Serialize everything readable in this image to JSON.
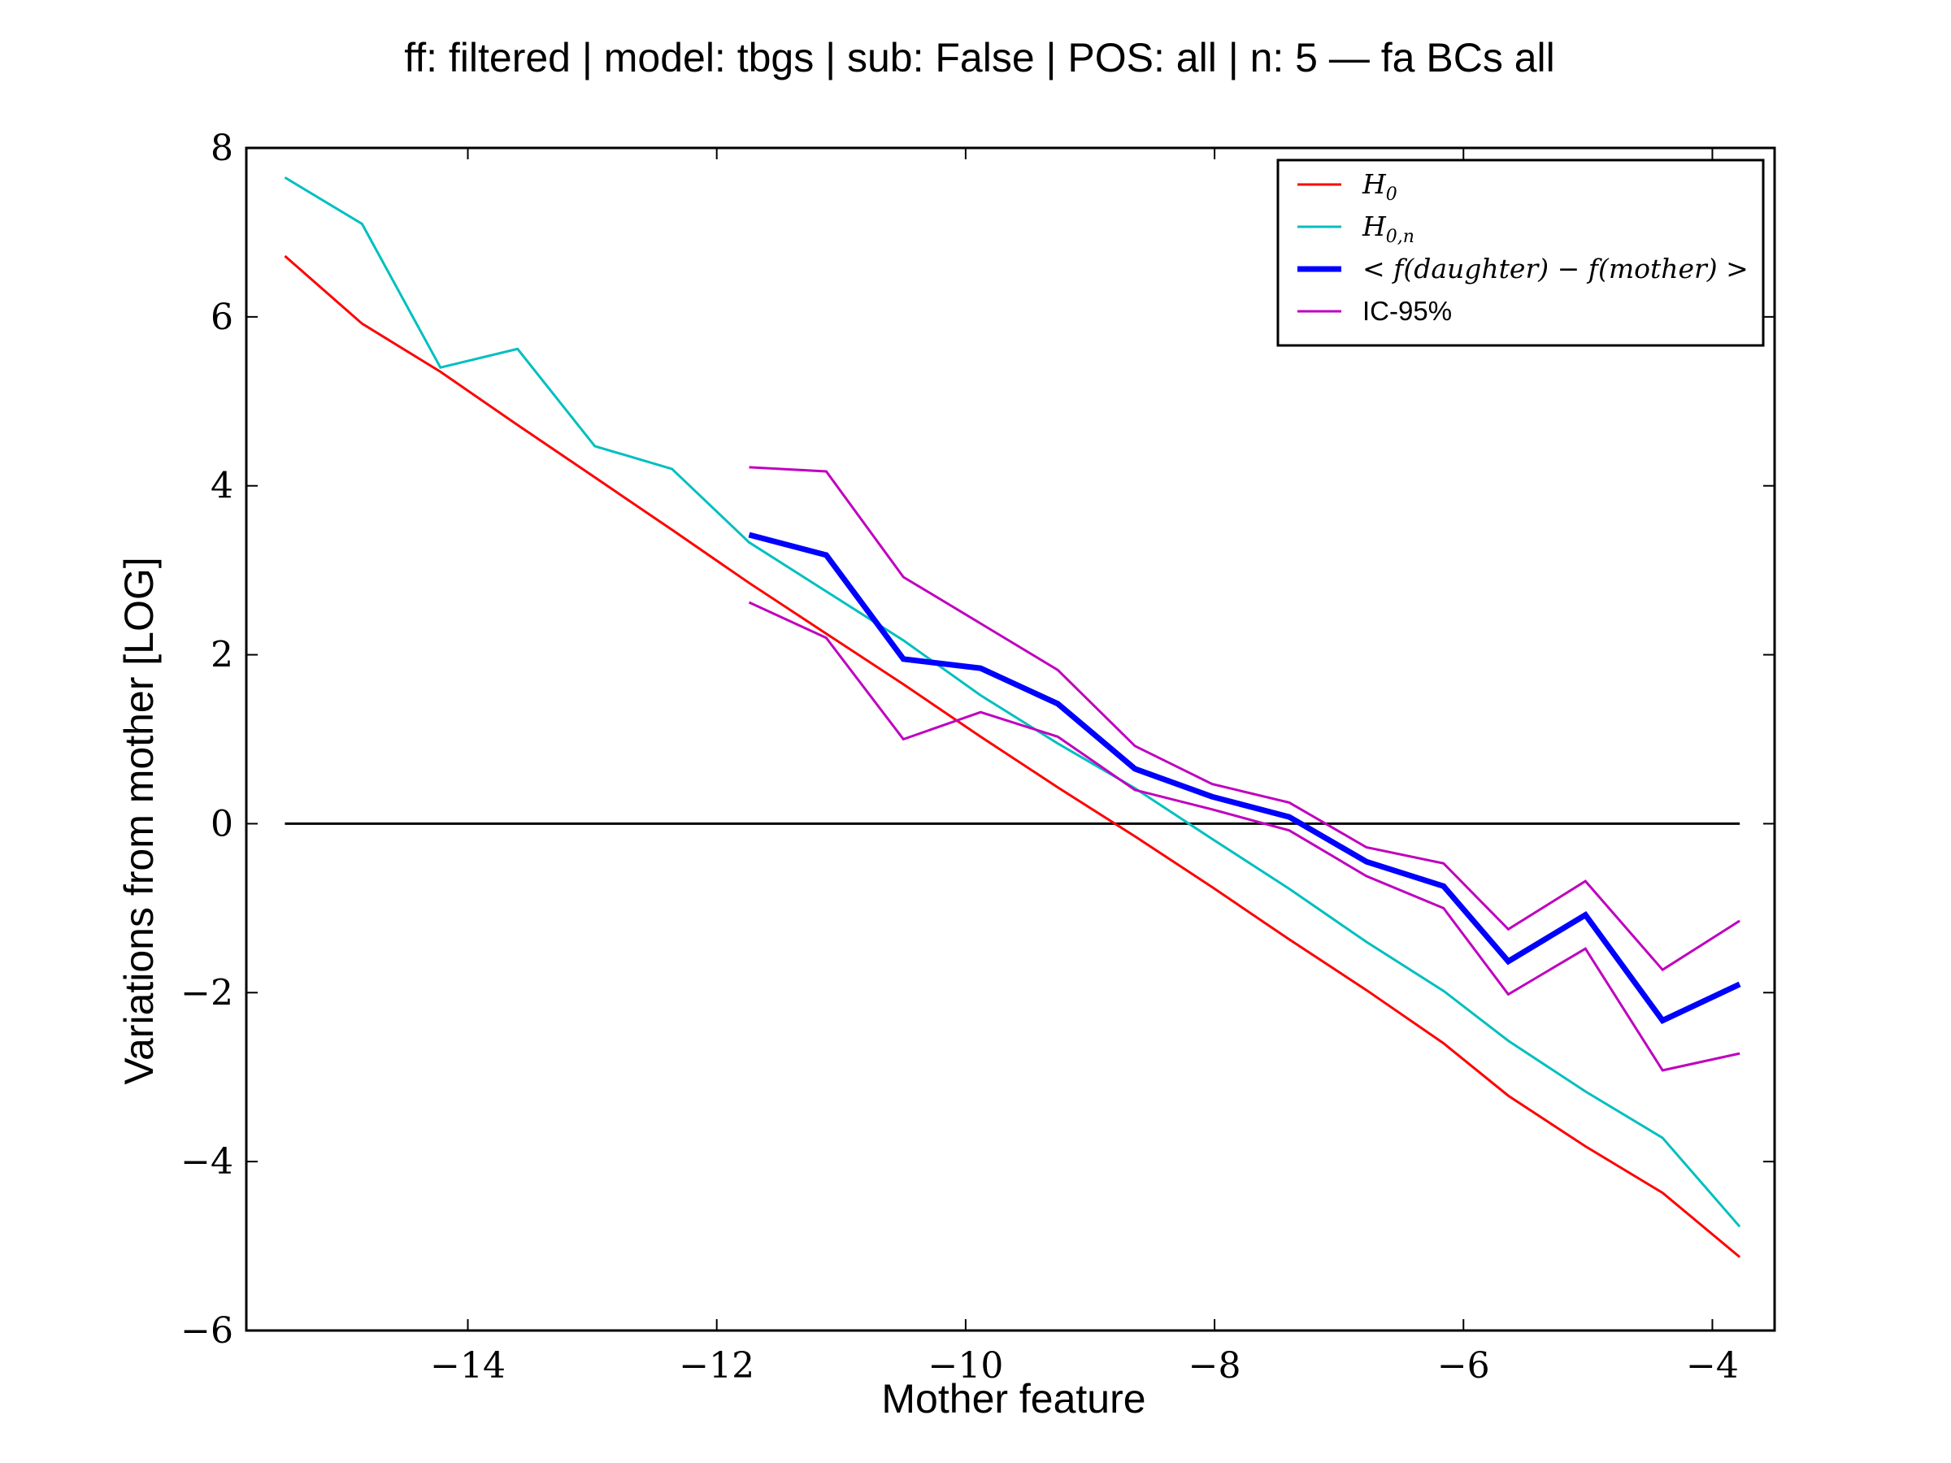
{
  "chart_data": {
    "type": "line",
    "title": "ff: filtered | model: tbgs | sub: False | POS: all | n: 5 — fa BCs all",
    "xlabel": "Mother feature",
    "ylabel": "Variations from mother [LOG]",
    "xlim": [
      -15.78,
      -3.5
    ],
    "ylim": [
      -6,
      8
    ],
    "xticks": [
      -14,
      -12,
      -10,
      -8,
      -6,
      -4
    ],
    "xtick_labels": [
      "−14",
      "−12",
      "−10",
      "−8",
      "−6",
      "−4"
    ],
    "yticks": [
      -6,
      -4,
      -2,
      0,
      2,
      4,
      6,
      8
    ],
    "ytick_labels": [
      "−6",
      "−4",
      "−2",
      "0",
      "2",
      "4",
      "6",
      "8"
    ],
    "grid": false,
    "legend_position": "top-right",
    "reference_line": {
      "y": 0,
      "x_range": [
        -15.47,
        -3.78
      ],
      "color": "#000000"
    },
    "series": [
      {
        "name": "H_0",
        "legend_main": "H",
        "legend_sub": "0",
        "color": "#ff0000",
        "width": 3,
        "x": [
          -15.47,
          -14.85,
          -14.22,
          -13.6,
          -12.98,
          -12.36,
          -11.74,
          -11.12,
          -10.5,
          -9.88,
          -9.26,
          -8.64,
          -8.02,
          -7.4,
          -6.78,
          -6.16,
          -5.64,
          -5.02,
          -4.4,
          -3.78
        ],
        "y": [
          6.72,
          5.92,
          5.35,
          4.72,
          4.1,
          3.48,
          2.85,
          2.25,
          1.65,
          1.03,
          0.43,
          -0.15,
          -0.75,
          -1.37,
          -1.97,
          -2.6,
          -3.22,
          -3.82,
          -4.37,
          -5.13
        ]
      },
      {
        "name": "H_{0,n}",
        "legend_main": "H",
        "legend_sub": "0,n",
        "color": "#00bfbf",
        "width": 3,
        "x": [
          -15.47,
          -14.85,
          -14.22,
          -13.6,
          -12.98,
          -12.36,
          -11.74,
          -11.12,
          -10.5,
          -9.88,
          -9.26,
          -8.64,
          -8.02,
          -7.4,
          -6.78,
          -6.16,
          -5.64,
          -5.02,
          -4.4,
          -3.78
        ],
        "y": [
          7.65,
          7.1,
          5.4,
          5.62,
          4.47,
          4.2,
          3.33,
          2.75,
          2.17,
          1.52,
          0.95,
          0.42,
          -0.18,
          -0.77,
          -1.4,
          -1.98,
          -2.57,
          -3.17,
          -3.72,
          -4.77
        ]
      },
      {
        "name": "< f(daughter) − f(mother) >",
        "legend_main": "< f(daughter) − f(mother) >",
        "legend_sub": "",
        "color": "#0000ff",
        "width": 7,
        "x": [
          -11.74,
          -11.12,
          -10.5,
          -9.88,
          -9.26,
          -8.64,
          -8.02,
          -7.4,
          -6.78,
          -6.16,
          -5.64,
          -5.02,
          -4.4,
          -3.78
        ],
        "y": [
          3.42,
          3.18,
          1.95,
          1.84,
          1.42,
          0.65,
          0.32,
          0.08,
          -0.45,
          -0.74,
          -1.63,
          -1.08,
          -2.33,
          -1.9
        ]
      },
      {
        "name": "IC-95%",
        "legend_main": "IC-95%",
        "legend_sub": "",
        "color": "#bf00bf",
        "width": 3,
        "x": [
          -11.74,
          -11.12,
          -10.5,
          -9.88,
          -9.26,
          -8.64,
          -8.02,
          -7.4,
          -6.78,
          -6.16,
          -5.64,
          -5.02,
          -4.4,
          -3.78
        ],
        "y": [
          4.22,
          4.17,
          2.92,
          2.37,
          1.82,
          0.92,
          0.47,
          0.25,
          -0.28,
          -0.47,
          -1.25,
          -0.68,
          -1.73,
          -1.15
        ]
      },
      {
        "name": "IC-95% (lower)",
        "legend_main": "",
        "legend_sub": "",
        "color": "#bf00bf",
        "width": 3,
        "x": [
          -11.74,
          -11.12,
          -10.5,
          -9.88,
          -9.26,
          -8.64,
          -8.02,
          -7.4,
          -6.78,
          -6.16,
          -5.64,
          -5.02,
          -4.4,
          -3.78
        ],
        "y": [
          2.62,
          2.2,
          1.0,
          1.32,
          1.03,
          0.4,
          0.17,
          -0.08,
          -0.62,
          -1.0,
          -2.02,
          -1.48,
          -2.92,
          -2.72
        ]
      }
    ]
  }
}
